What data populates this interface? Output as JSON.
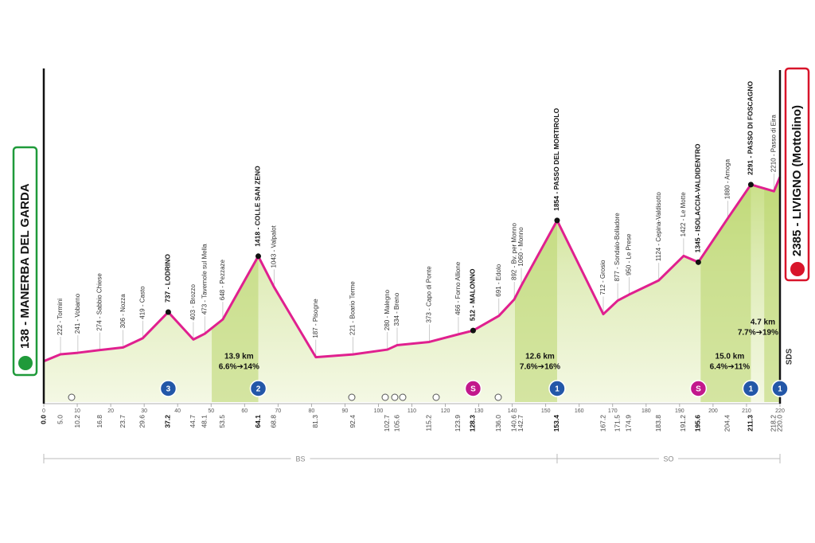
{
  "chart_data": {
    "type": "area",
    "x": [
      0.0,
      5.0,
      10.2,
      16.8,
      23.7,
      29.6,
      37.2,
      44.7,
      48.1,
      53.5,
      64.1,
      68.8,
      81.3,
      92.4,
      102.7,
      105.6,
      115.2,
      123.9,
      128.3,
      136.0,
      140.6,
      142.7,
      153.4,
      167.2,
      171.5,
      174.9,
      183.8,
      191.2,
      195.6,
      204.4,
      211.3,
      218.2,
      220.0
    ],
    "x_labels": [
      "0.0",
      "5.0",
      "10.2",
      "16.8",
      "23.7",
      "29.6",
      "37.2",
      "44.7",
      "48.1",
      "53.5",
      "64.1",
      "68.8",
      "81.3",
      "92.4",
      "102.7",
      "105.6",
      "115.2",
      "123.9",
      "128.3",
      "136.0",
      "140.6",
      "142.7",
      "153.4",
      "167.2",
      "171.5",
      "174.9",
      "183.8",
      "191.2",
      "195.6",
      "204.4",
      "211.3",
      "218.2",
      "220.0"
    ],
    "values": [
      138,
      222,
      241,
      274,
      306,
      419,
      737,
      403,
      473,
      648,
      1418,
      1043,
      187,
      221,
      280,
      334,
      373,
      466,
      512,
      691,
      892,
      1060,
      1854,
      712,
      877,
      950,
      1124,
      1422,
      1345,
      1880,
      2291,
      2210,
      2385
    ],
    "value_labels": [
      "138 - MANERBA DEL GARDA",
      "222 - Tormini",
      "241 - Vobarno",
      "274 - Sabbio Chiese",
      "306 - Nozza",
      "419 - Casto",
      "737 - LODRINO",
      "403 - Brozzo",
      "473 - Tavernole sul Mella",
      "648 - Pezzaze",
      "1418 - COLLE SAN ZENO",
      "1043 - Valpalot",
      "187 - Pisogne",
      "221 - Boario Terme",
      "280 - Malegno",
      "334 - Breno",
      "373 - Capo di Ponte",
      "466 - Forno Allione",
      "512 - MALONNO",
      "691 - Edolo",
      "892 - Bv. per Monno",
      "1060 - Monno",
      "1854 - PASSO DEL MORTIROLO",
      "712 - Grosio",
      "877 - Sondalo-Bolladore",
      "950 - Le Prese",
      "1124 - Cepina-Valdisotto",
      "1422 - Le Motte",
      "1345 - ISOLACCIA-VALDIDENTRO",
      "1880 - Arnoga",
      "2291 - PASSO DI FOSCAGNO",
      "2210 - Passo di Eira",
      "2385 - LIVIGNO (Mottolino)"
    ],
    "color": "#e0208f",
    "xlim": [
      0,
      220
    ],
    "xticks": [
      0,
      10,
      20,
      30,
      40,
      50,
      60,
      70,
      80,
      90,
      100,
      110,
      120,
      130,
      140,
      150,
      160,
      170,
      180,
      190,
      200,
      210,
      220
    ],
    "ylim": [
      -360,
      2600
    ],
    "yticks": [
      200,
      400,
      600,
      800,
      1000,
      1200,
      1400,
      1600,
      1800,
      2000,
      2200
    ],
    "climbs": [
      {
        "km": 37.2,
        "category": "3"
      },
      {
        "km": 64.1,
        "category": "2",
        "length": 13.9,
        "length_label": "13.9 km",
        "gradient": "6.6%➔14%"
      },
      {
        "km": 153.4,
        "category": "1",
        "length": 12.6,
        "length_label": "12.6 km",
        "gradient": "7.6%➔16%"
      },
      {
        "km": 211.3,
        "category": "1",
        "length": 15.0,
        "length_label": "15.0 km",
        "gradient": "6.4%➔11%"
      },
      {
        "km": 220.0,
        "category": "1",
        "length": 4.7,
        "length_label": "4.7 km",
        "gradient": "7.7%➔19%"
      }
    ],
    "sprints": [
      {
        "km": 128.3,
        "label": "S"
      },
      {
        "km": 195.6,
        "label": "S"
      }
    ],
    "regions": [
      {
        "name": "BS",
        "from": 0,
        "to": 153.4
      },
      {
        "name": "SO",
        "from": 153.4,
        "to": 220
      }
    ],
    "finish_logo": "SDS"
  }
}
